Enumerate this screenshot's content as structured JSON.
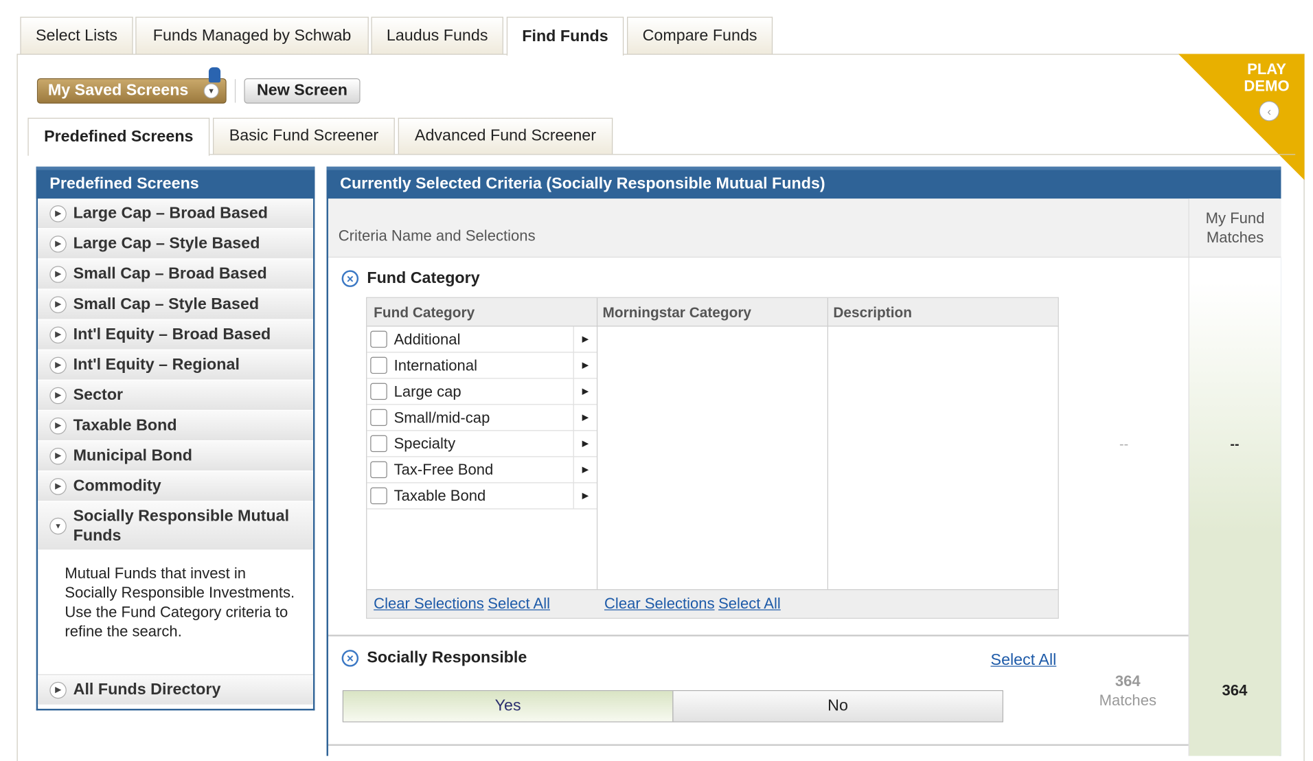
{
  "top_tabs": [
    "Select Lists",
    "Funds Managed by Schwab",
    "Laudus Funds",
    "Find Funds",
    "Compare Funds"
  ],
  "active_top_tab": "Find Funds",
  "toolbar": {
    "saved_screens": "My Saved Screens",
    "new_screen": "New Screen"
  },
  "demo": {
    "label_1": "PLAY",
    "label_2": "DEMO",
    "color": "#e8b000"
  },
  "sub_tabs": [
    "Predefined Screens",
    "Basic Fund Screener",
    "Advanced Fund Screener"
  ],
  "sidebar": {
    "title": "Predefined Screens",
    "items": [
      "Large Cap – Broad Based",
      "Large Cap – Style Based",
      "Small Cap – Broad Based",
      "Small Cap – Style Based",
      "Int'l Equity – Broad Based",
      "Int'l Equity – Regional",
      "Sector",
      "Taxable Bond",
      "Municipal Bond",
      "Commodity"
    ],
    "expanded": {
      "label": "Socially Responsible Mutual Funds",
      "description": "Mutual Funds that invest in Socially Responsible Investments. Use the Fund Category criteria to refine the search."
    },
    "last": "All Funds Directory"
  },
  "main": {
    "title": "Currently Selected Criteria (Socially Responsible Mutual Funds)",
    "col_criteria": "Criteria Name and Selections",
    "col_matches": "My Fund Matches",
    "fund_category": {
      "title": "Fund Category",
      "headers": [
        "Fund Category",
        "Morningstar Category",
        "Description"
      ],
      "options": [
        "Additional",
        "International",
        "Large cap",
        "Small/mid-cap",
        "Specialty",
        "Tax-Free Bond",
        "Taxable Bond"
      ],
      "clear": "Clear Selections",
      "select_all": "Select All",
      "matches": "--",
      "my_matches": "--"
    },
    "socially_responsible": {
      "title": "Socially Responsible",
      "select_all": "Select All",
      "yes": "Yes",
      "no": "No",
      "selected": "Yes",
      "matches_count": "364",
      "matches_label": "Matches",
      "my_matches": "364"
    }
  },
  "colors": {
    "header_blue": "#2f6397",
    "match_green": "#e2ead3",
    "link": "#1d5aa8"
  }
}
